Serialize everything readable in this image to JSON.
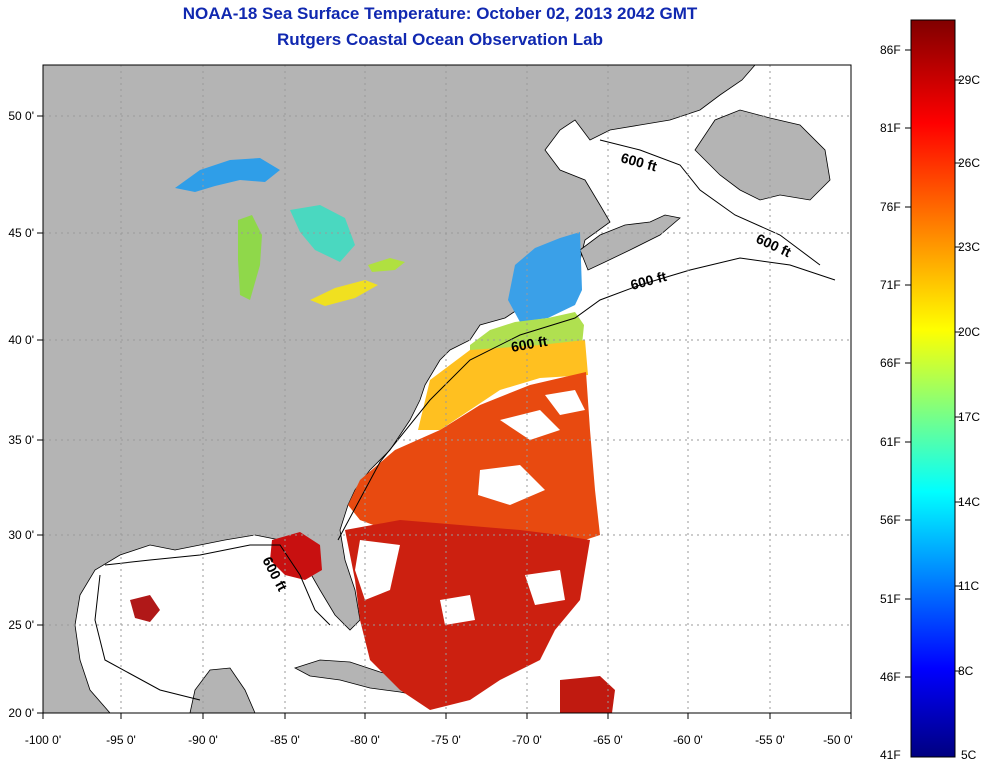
{
  "title": "NOAA-18 Sea Surface Temperature:  October 02, 2013 2042 GMT",
  "subtitle": "Rutgers Coastal Ocean Observation Lab",
  "map": {
    "lon_labels": [
      "-100 0'",
      "-95 0'",
      "-90 0'",
      "-85 0'",
      "-80 0'",
      "-75 0'",
      "-70 0'",
      "-65 0'",
      "-60 0'",
      "-55 0'",
      "-50 0'"
    ],
    "lat_labels": [
      "50 0'",
      "45 0'",
      "40 0'",
      "35 0'",
      "30 0'",
      "25 0'",
      "20 0'"
    ],
    "contour_labels": [
      "600 ft",
      "600 ft",
      "600 ft",
      "600 ft",
      "600 ft"
    ],
    "colors": {
      "land": "#b4b4b4",
      "ocean_nodata": "#ffffff",
      "grid": "#9a9a9a"
    }
  },
  "colorbar": {
    "f_labels": [
      "86F",
      "81F",
      "76F",
      "71F",
      "66F",
      "61F",
      "56F",
      "51F",
      "46F",
      "41F"
    ],
    "c_labels": [
      "29C",
      "26C",
      "23C",
      "20C",
      "17C",
      "14C",
      "11C",
      "8C",
      "5C"
    ],
    "colormap": [
      "#000080",
      "#0000ff",
      "#00ffff",
      "#ffff00",
      "#ff0000",
      "#800000"
    ]
  }
}
